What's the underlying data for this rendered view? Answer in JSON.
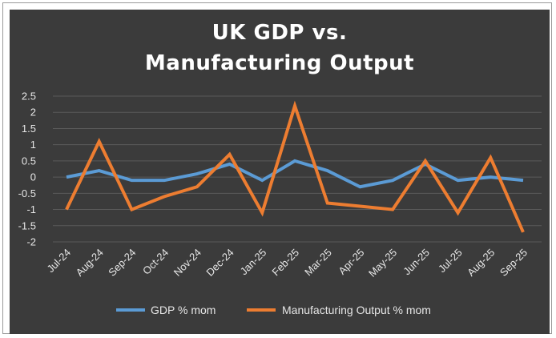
{
  "chart_data": {
    "type": "line",
    "title_line1": "UK GDP vs.",
    "title_line2": "Manufacturing Output",
    "xlabel": "",
    "ylabel": "",
    "categories": [
      "Jul-24",
      "Aug-24",
      "Sep-24",
      "Oct-24",
      "Nov-24",
      "Dec-24",
      "Jan-25",
      "Feb-25",
      "Mar-25",
      "Apr-25",
      "May-25",
      "Jun-25",
      "Jul-25",
      "Aug-25",
      "Sep-25"
    ],
    "ylim": [
      -2,
      2.5
    ],
    "yticks": [
      2.5,
      2,
      1.5,
      1,
      0.5,
      0,
      -0.5,
      -1,
      -1.5,
      -2
    ],
    "ytick_labels": [
      "2.5",
      "2",
      "1.5",
      "1",
      "0.5",
      "0",
      "-0.5",
      "-1",
      "-1.5",
      "-2"
    ],
    "grid": true,
    "legend_position": "bottom",
    "series": [
      {
        "name": "GDP % mom",
        "color": "#5b9bd5",
        "values": [
          0.0,
          0.2,
          -0.1,
          -0.1,
          0.1,
          0.4,
          -0.1,
          0.5,
          0.2,
          -0.3,
          -0.1,
          0.4,
          -0.1,
          0.0,
          -0.1
        ]
      },
      {
        "name": "Manufacturing Output % mom",
        "color": "#ed7d31",
        "values": [
          -1.0,
          1.1,
          -1.0,
          -0.6,
          -0.3,
          0.7,
          -1.1,
          2.2,
          -0.8,
          -0.9,
          -1.0,
          0.5,
          -1.1,
          0.6,
          -1.7
        ]
      }
    ]
  }
}
